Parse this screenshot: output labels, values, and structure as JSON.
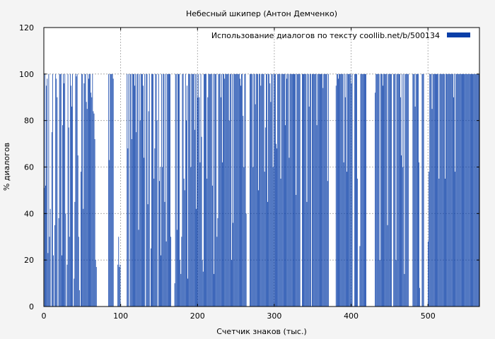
{
  "chart_data": {
    "type": "bar",
    "title": "Небесный шкипер (Антон Демченко)",
    "xlabel": "Счетчик знаков (тыс.)",
    "ylabel": "% диалогов",
    "xlim": [
      0,
      567
    ],
    "ylim": [
      0,
      120
    ],
    "x_ticks": [
      0,
      100,
      200,
      300,
      400,
      500
    ],
    "y_ticks": [
      0,
      20,
      40,
      60,
      80,
      100,
      120
    ],
    "grid": true,
    "legend_position": "top-right",
    "series": [
      {
        "name": "Использование диалогов по тексту  coollib.net/b/500134",
        "color": "#0a3fa8",
        "x_start": 0,
        "x_step": 1,
        "values": [
          51,
          100,
          52,
          95,
          98,
          23,
          100,
          30,
          42,
          0,
          75,
          100,
          22,
          0,
          35,
          100,
          98,
          90,
          0,
          38,
          100,
          100,
          100,
          22,
          78,
          100,
          96,
          100,
          40,
          0,
          18,
          100,
          77,
          30,
          100,
          95,
          86,
          100,
          0,
          12,
          45,
          100,
          99,
          100,
          65,
          30,
          7,
          0,
          58,
          100,
          100,
          42,
          96,
          100,
          100,
          88,
          85,
          100,
          98,
          100,
          100,
          92,
          90,
          100,
          84,
          83,
          72,
          20,
          17,
          0,
          0,
          0,
          0,
          0,
          0,
          0,
          0,
          0,
          0,
          0,
          0,
          0,
          0,
          0,
          100,
          63,
          100,
          100,
          100,
          100,
          98,
          0,
          0,
          0,
          0,
          0,
          18,
          30,
          17,
          18,
          0,
          0,
          0,
          0,
          0,
          0,
          0,
          0,
          100,
          68,
          100,
          0,
          100,
          100,
          72,
          100,
          100,
          100,
          95,
          100,
          75,
          100,
          100,
          33,
          100,
          80,
          100,
          100,
          100,
          95,
          64,
          100,
          0,
          100,
          100,
          44,
          84,
          100,
          0,
          25,
          100,
          100,
          100,
          55,
          68,
          100,
          100,
          80,
          0,
          100,
          54,
          60,
          22,
          100,
          60,
          100,
          100,
          45,
          100,
          28,
          100,
          100,
          100,
          100,
          100,
          30,
          0,
          0,
          0,
          0,
          10,
          100,
          100,
          33,
          100,
          100,
          100,
          20,
          14,
          30,
          100,
          100,
          55,
          50,
          100,
          80,
          95,
          12,
          100,
          100,
          100,
          60,
          100,
          100,
          100,
          100,
          76,
          100,
          42,
          100,
          90,
          100,
          90,
          62,
          100,
          73,
          20,
          15,
          100,
          100,
          100,
          100,
          55,
          90,
          100,
          100,
          100,
          100,
          100,
          52,
          100,
          14,
          100,
          100,
          100,
          30,
          38,
          100,
          100,
          100,
          90,
          100,
          62,
          100,
          100,
          98,
          100,
          100,
          100,
          100,
          100,
          80,
          100,
          100,
          20,
          100,
          36,
          100,
          100,
          100,
          100,
          100,
          100,
          100,
          100,
          98,
          95,
          100,
          100,
          82,
          60,
          100,
          100,
          40,
          0,
          0,
          0,
          0,
          100,
          100,
          100,
          100,
          60,
          100,
          100,
          87,
          100,
          100,
          100,
          50,
          100,
          100,
          95,
          100,
          100,
          100,
          100,
          58,
          77,
          100,
          100,
          45,
          100,
          100,
          96,
          88,
          100,
          100,
          60,
          100,
          100,
          100,
          70,
          68,
          100,
          100,
          100,
          100,
          55,
          100,
          100,
          100,
          100,
          100,
          78,
          100,
          98,
          100,
          100,
          64,
          100,
          100,
          100,
          100,
          100,
          100,
          100,
          100,
          48,
          100,
          100,
          100,
          100,
          100,
          0,
          0,
          100,
          100,
          100,
          100,
          100,
          100,
          45,
          100,
          100,
          86,
          100,
          100,
          0,
          100,
          100,
          100,
          100,
          100,
          100,
          78,
          100,
          100,
          100,
          100,
          100,
          100,
          100,
          94,
          100,
          100,
          100,
          100,
          100,
          54,
          100,
          0,
          0,
          0,
          0,
          0,
          0,
          0,
          0,
          0,
          95,
          100,
          100,
          98,
          100,
          100,
          100,
          100,
          100,
          100,
          62,
          100,
          90,
          100,
          58,
          100,
          100,
          100,
          100,
          100,
          96,
          100,
          0,
          0,
          100,
          100,
          100,
          100,
          55,
          0,
          0,
          26,
          100,
          100,
          100,
          100,
          100,
          100,
          100,
          100,
          0,
          0,
          0,
          0,
          0,
          0,
          0,
          0,
          0,
          0,
          0,
          92,
          100,
          100,
          100,
          100,
          100,
          20,
          100,
          100,
          100,
          95,
          100,
          100,
          100,
          100,
          100,
          35,
          100,
          100,
          100,
          100,
          100,
          0,
          0,
          100,
          100,
          100,
          20,
          100,
          100,
          100,
          100,
          100,
          90,
          65,
          100,
          60,
          100,
          14,
          100,
          100,
          100,
          100,
          100,
          0,
          0,
          0,
          0,
          0,
          100,
          100,
          100,
          86,
          100,
          100,
          100,
          100,
          62,
          8,
          0,
          0,
          100,
          100,
          100,
          0,
          0,
          0,
          0,
          0,
          28,
          58,
          100,
          100,
          100,
          85,
          100,
          100,
          100,
          100,
          100,
          100,
          100,
          100,
          55,
          100,
          100,
          100,
          100,
          100,
          100,
          100,
          55,
          100,
          100,
          100,
          100,
          100,
          100,
          100,
          100,
          100,
          100,
          90,
          100,
          58,
          100,
          100,
          100,
          100,
          100,
          100,
          100,
          100,
          100,
          100,
          100,
          100,
          100,
          100,
          100,
          100,
          100,
          100,
          100,
          100,
          100,
          100,
          100,
          100,
          100,
          100,
          100,
          100,
          100,
          100,
          100
        ]
      }
    ]
  }
}
